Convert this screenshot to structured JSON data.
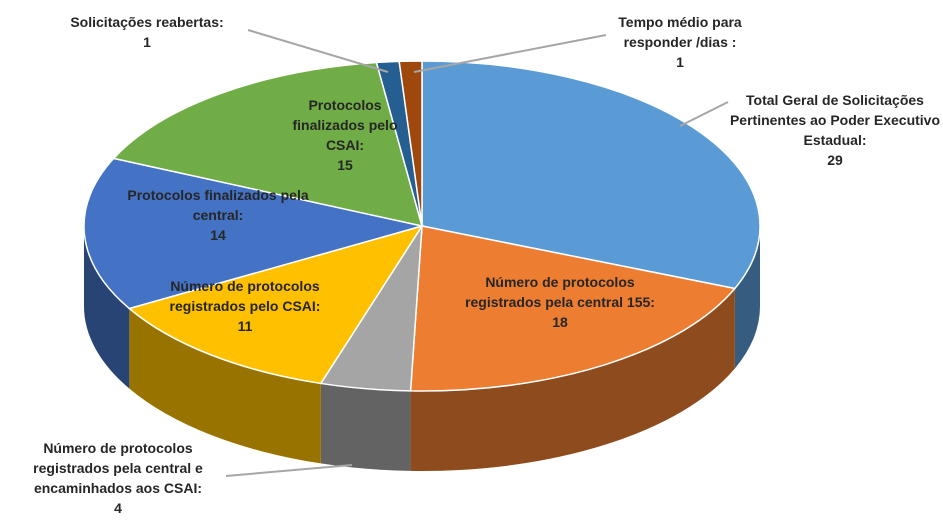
{
  "chart_data": {
    "type": "pie",
    "categories": [
      "Total Geral de Solicitações Pertinentes ao Poder Executivo Estadual:",
      "Número de protocolos registrados pela central 155:",
      "Número de protocolos registrados pela central e encaminhados aos CSAI:",
      "Número de protocolos registrados pelo CSAI:",
      "Protocolos finalizados pela central:",
      "Protocolos finalizados pelo CSAI:",
      "Solicitações reabertas:",
      "Tempo médio para responder /dias :"
    ],
    "values": [
      29,
      18,
      4,
      11,
      14,
      15,
      1,
      1
    ],
    "colors": [
      "#5b9bd5",
      "#ed7d31",
      "#a5a5a5",
      "#ffc000",
      "#4472c4",
      "#70ad47",
      "#255e91",
      "#9e480e"
    ]
  }
}
